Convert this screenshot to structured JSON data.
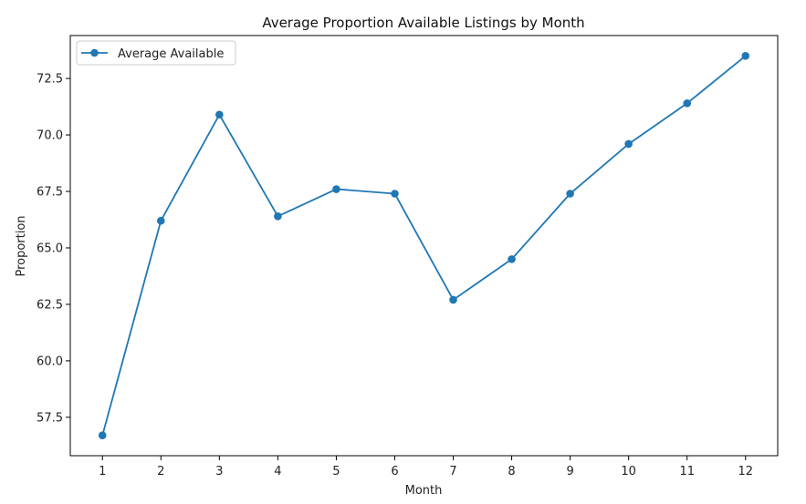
{
  "chart_data": {
    "type": "line",
    "title": "Average Proportion Available Listings by Month",
    "xlabel": "Month",
    "ylabel": "Proportion",
    "x": [
      1,
      2,
      3,
      4,
      5,
      6,
      7,
      8,
      9,
      10,
      11,
      12
    ],
    "x_tick_labels": [
      "1",
      "2",
      "3",
      "4",
      "5",
      "6",
      "7",
      "8",
      "9",
      "10",
      "11",
      "12"
    ],
    "y_ticks": [
      57.5,
      60.0,
      62.5,
      65.0,
      67.5,
      70.0,
      72.5
    ],
    "y_tick_labels": [
      "57.5",
      "60.0",
      "62.5",
      "65.0",
      "67.5",
      "70.0",
      "72.5"
    ],
    "xlim": [
      0.45,
      12.55
    ],
    "ylim": [
      55.8,
      74.4
    ],
    "series": [
      {
        "name": "Average Available",
        "values": [
          56.7,
          66.2,
          70.9,
          66.4,
          67.6,
          67.4,
          62.7,
          64.5,
          67.4,
          69.6,
          71.4,
          73.5
        ],
        "color": "#1f77b4",
        "marker": "circle"
      }
    ],
    "legend_position": "top-left",
    "grid": false
  }
}
